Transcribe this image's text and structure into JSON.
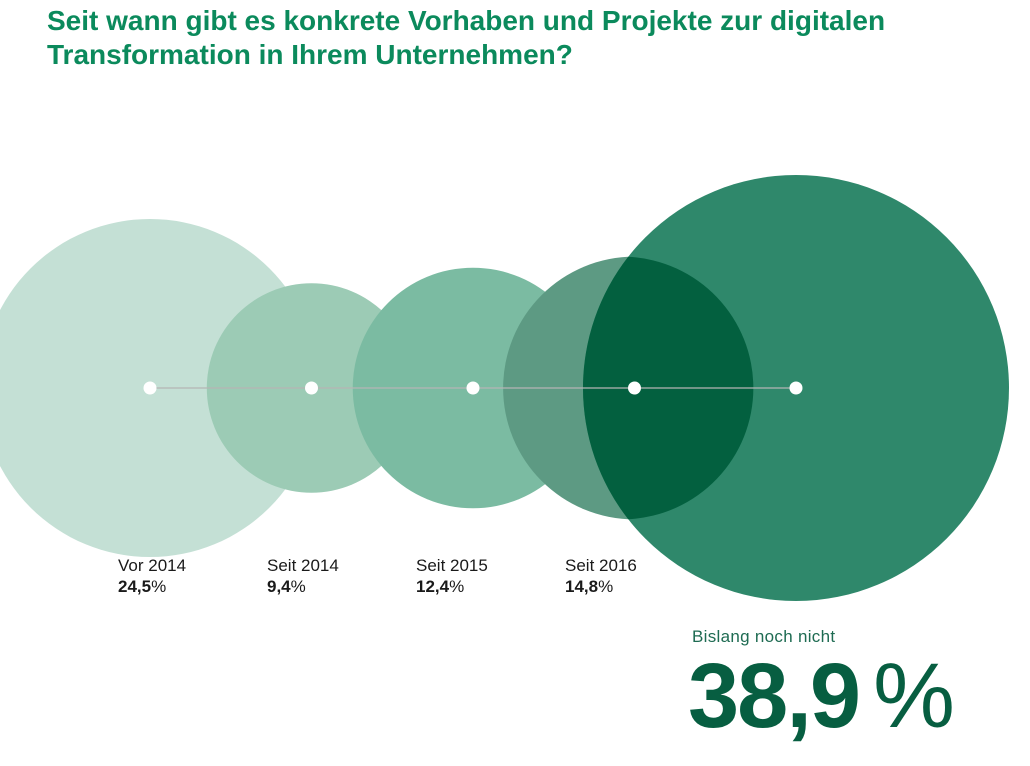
{
  "title": "Seit wann gibt es konkrete Vorhaben und Projekte zur digitalen Transformation in Ihrem Unternehmen?",
  "unit": "%",
  "chart_data": {
    "type": "bubble",
    "title": "Seit wann gibt es konkrete Vorhaben und Projekte zur digitalen Transformation in Ihrem Unternehmen?",
    "categories": [
      "Vor 2014",
      "Seit 2014",
      "Seit 2015",
      "Seit 2016",
      "Bislang noch nicht"
    ],
    "values": [
      24.5,
      9.4,
      12.4,
      14.8,
      38.9
    ],
    "value_labels": [
      "24,5",
      "9,4",
      "12,4",
      "14,8",
      "38,9"
    ],
    "unit": "%",
    "colors": [
      "#c4e0d5",
      "#9ccbb5",
      "#7bbba2",
      "#5d9a83",
      "#2f886b"
    ],
    "overlap_color": "#03603f",
    "axis_color": "#b5b5b5",
    "highlight": {
      "label": "Bislang noch nicht",
      "value": "38,9",
      "unit": "%",
      "color": "#075e41"
    }
  }
}
